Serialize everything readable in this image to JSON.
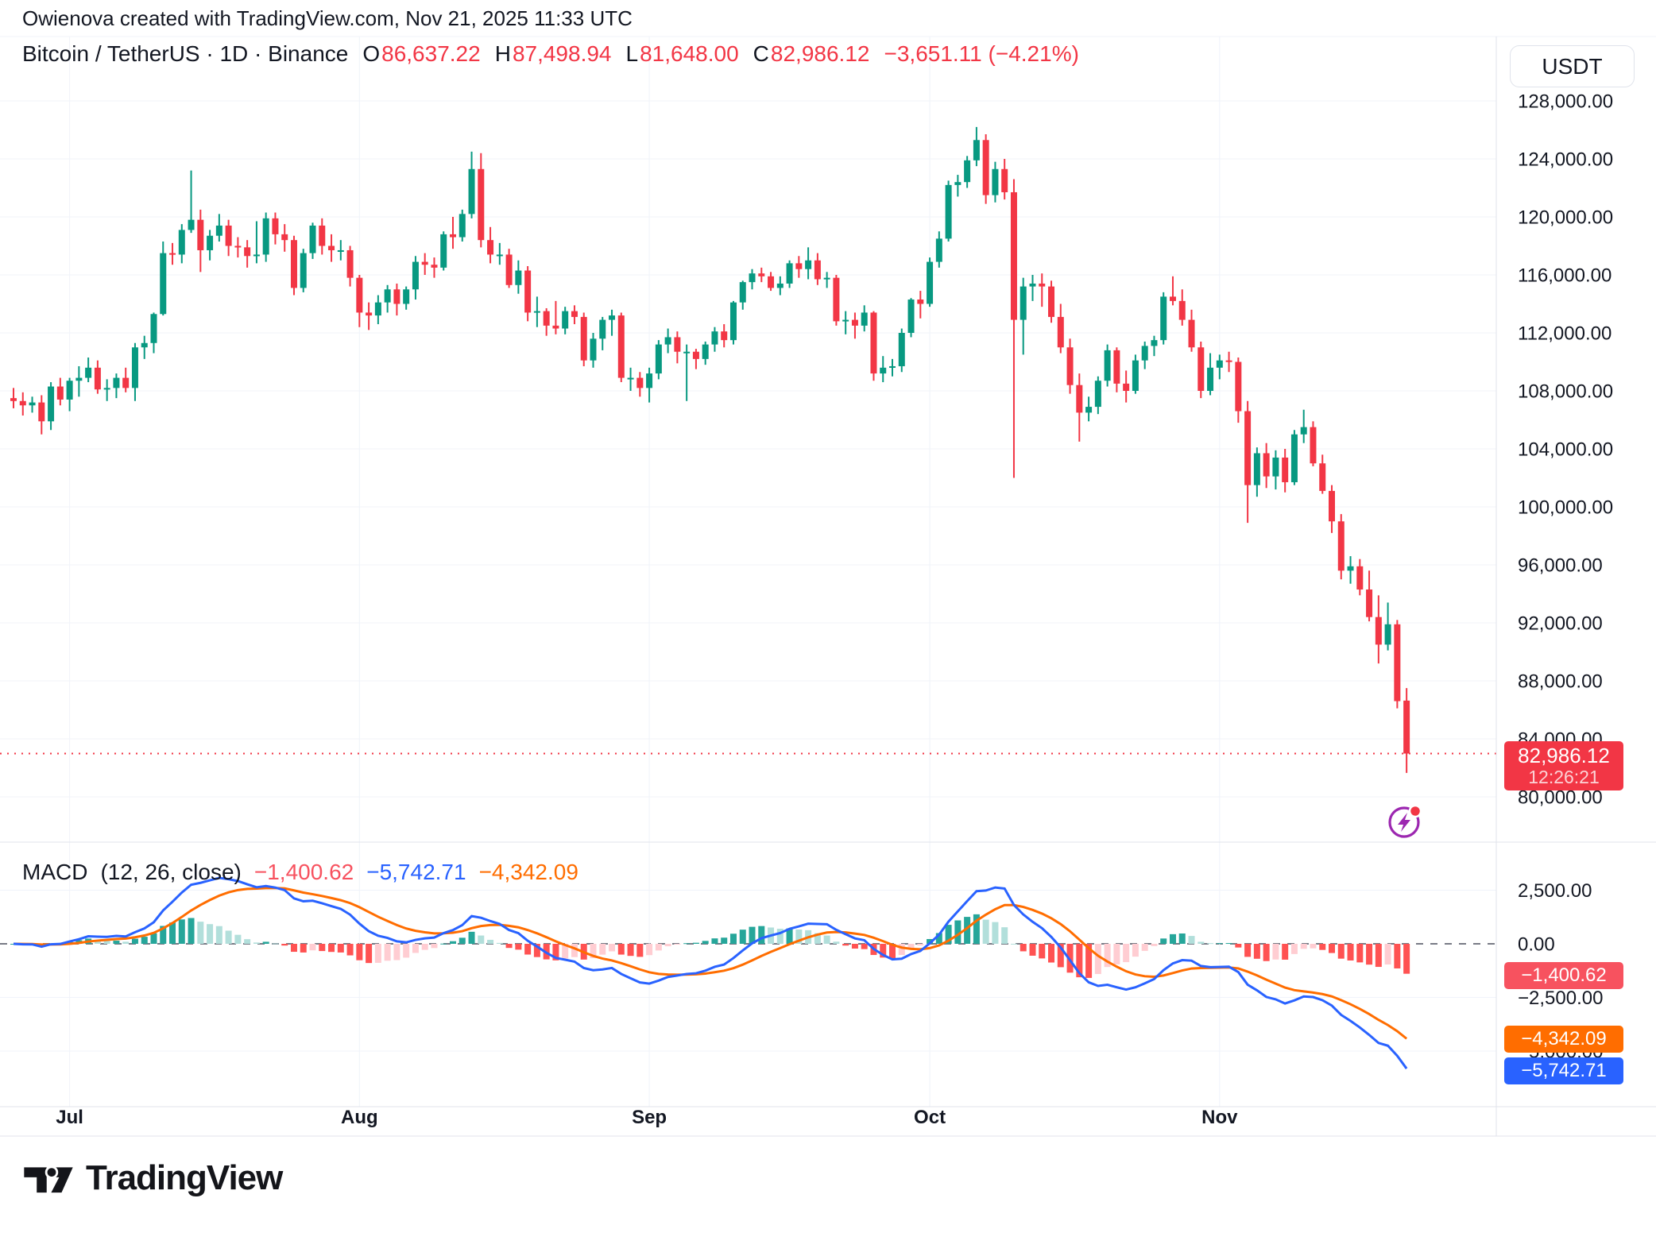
{
  "attribution": "Owienova created with TradingView.com, Nov 21, 2025 11:33 UTC",
  "header": {
    "instrument": "Bitcoin / TetherUS · 1D · Binance",
    "o_label": "O",
    "o": "86,637.22",
    "h_label": "H",
    "h": "87,498.94",
    "l_label": "L",
    "l": "81,648.00",
    "c_label": "C",
    "c": "82,986.12",
    "change": "−3,651.11 (−4.21%)"
  },
  "currency_button": "USDT",
  "price_axis": {
    "ticks": [
      {
        "value": 128000,
        "label": "128,000.00"
      },
      {
        "value": 124000,
        "label": "124,000.00"
      },
      {
        "value": 120000,
        "label": "120,000.00"
      },
      {
        "value": 116000,
        "label": "116,000.00"
      },
      {
        "value": 112000,
        "label": "112,000.00"
      },
      {
        "value": 108000,
        "label": "108,000.00"
      },
      {
        "value": 104000,
        "label": "104,000.00"
      },
      {
        "value": 100000,
        "label": "100,000.00"
      },
      {
        "value": 96000,
        "label": "96,000.00"
      },
      {
        "value": 92000,
        "label": "92,000.00"
      },
      {
        "value": 88000,
        "label": "88,000.00"
      },
      {
        "value": 84000,
        "label": "84,000.00"
      },
      {
        "value": 80000,
        "label": "80,000.00"
      }
    ],
    "badge": {
      "price": "82,986.12",
      "countdown": "12:26:21",
      "value": 82986.12
    }
  },
  "macd": {
    "title": "MACD",
    "params": "(12, 26, close)",
    "fast": 12,
    "slow": 26,
    "source": "close",
    "signal_period": 9,
    "hist_value": "−1,400.62",
    "macd_value": "−5,742.71",
    "signal_value": "−4,342.09",
    "axis_ticks": [
      {
        "value": 2500,
        "label": "2,500.00"
      },
      {
        "value": 0,
        "label": "0.00"
      },
      {
        "value": -2500,
        "label": "−2,500.00"
      },
      {
        "value": -5000,
        "label": "−5,000.00"
      }
    ]
  },
  "xaxis": {
    "months": [
      {
        "label": "Jul",
        "index": 6
      },
      {
        "label": "Aug",
        "index": 37
      },
      {
        "label": "Sep",
        "index": 68
      },
      {
        "label": "Oct",
        "index": 98
      },
      {
        "label": "Nov",
        "index": 129
      }
    ]
  },
  "footer": {
    "brand": "TradingView"
  },
  "colors": {
    "up": "#089981",
    "down": "#F23645",
    "macd_line": "#2962FF",
    "signal_line": "#FF6D00",
    "hist_grow_above": "#26A69A",
    "hist_fall_above": "#B2DFDB",
    "hist_fall_below": "#FF5252",
    "hist_grow_below": "#FFCDD2",
    "grid": "#F0F3FA",
    "border": "#E0E3EB",
    "text": "#131722",
    "zero_line": "#787B86",
    "dotted_price_line": "#F23645",
    "flash_icon_purple": "#9C27B0",
    "flash_icon_dot": "#F23645"
  },
  "chart_data": {
    "type": "candlestick",
    "title": "Bitcoin / TetherUS · 1D · Binance",
    "visible_price_range": [
      80000,
      128000
    ],
    "macd_visible_range": [
      -7500,
      4600
    ],
    "grid": true,
    "candles_ohlc": [
      [
        107500,
        108200,
        106800,
        107300
      ],
      [
        107300,
        107900,
        106300,
        107000
      ],
      [
        107000,
        107600,
        106500,
        107200
      ],
      [
        107200,
        107700,
        105000,
        105900
      ],
      [
        105900,
        108600,
        105300,
        108300
      ],
      [
        108300,
        108900,
        107000,
        107400
      ],
      [
        107400,
        108900,
        106600,
        108700
      ],
      [
        108700,
        109700,
        107600,
        108900
      ],
      [
        108900,
        110300,
        108600,
        109600
      ],
      [
        109600,
        110100,
        107800,
        108100
      ],
      [
        108100,
        108800,
        107300,
        108200
      ],
      [
        108200,
        109200,
        107500,
        108900
      ],
      [
        108900,
        109600,
        107900,
        108200
      ],
      [
        108200,
        111300,
        107300,
        111000
      ],
      [
        111000,
        111800,
        110200,
        111300
      ],
      [
        111300,
        113400,
        110600,
        113300
      ],
      [
        113300,
        118300,
        113200,
        117500
      ],
      [
        117500,
        118200,
        116700,
        117400
      ],
      [
        117400,
        119500,
        116800,
        119100
      ],
      [
        119100,
        123200,
        118900,
        119800
      ],
      [
        119800,
        120500,
        116200,
        117700
      ],
      [
        117700,
        119100,
        117000,
        118700
      ],
      [
        118700,
        120200,
        118300,
        119400
      ],
      [
        119400,
        119800,
        117300,
        118000
      ],
      [
        118000,
        118600,
        117200,
        117900
      ],
      [
        117900,
        118400,
        116500,
        117300
      ],
      [
        117300,
        119700,
        116800,
        117400
      ],
      [
        117400,
        120300,
        116900,
        119900
      ],
      [
        119900,
        120300,
        118100,
        118800
      ],
      [
        118800,
        119500,
        117600,
        118400
      ],
      [
        118400,
        118700,
        114600,
        115100
      ],
      [
        115100,
        117800,
        114800,
        117500
      ],
      [
        117500,
        119600,
        117100,
        119400
      ],
      [
        119400,
        119900,
        117400,
        118000
      ],
      [
        118000,
        118800,
        116900,
        117700
      ],
      [
        117700,
        118400,
        117000,
        117700
      ],
      [
        117700,
        118000,
        115200,
        115800
      ],
      [
        115800,
        116000,
        112400,
        113400
      ],
      [
        113400,
        114100,
        112200,
        113200
      ],
      [
        113200,
        114600,
        112600,
        114100
      ],
      [
        114100,
        115300,
        113400,
        115000
      ],
      [
        115000,
        115400,
        113200,
        114000
      ],
      [
        114000,
        115200,
        113600,
        115000
      ],
      [
        115000,
        117300,
        114300,
        116900
      ],
      [
        116900,
        117500,
        116000,
        116700
      ],
      [
        116700,
        117200,
        115800,
        116500
      ],
      [
        116500,
        119000,
        116300,
        118800
      ],
      [
        118800,
        120000,
        117800,
        118600
      ],
      [
        118600,
        120500,
        118300,
        120200
      ],
      [
        120200,
        124500,
        119900,
        123300
      ],
      [
        123300,
        124400,
        117900,
        118400
      ],
      [
        118400,
        119300,
        116800,
        117400
      ],
      [
        117400,
        118200,
        116700,
        117400
      ],
      [
        117400,
        117800,
        115100,
        115300
      ],
      [
        115300,
        117000,
        114700,
        116300
      ],
      [
        116300,
        116600,
        112800,
        113400
      ],
      [
        113400,
        114500,
        112400,
        113500
      ],
      [
        113500,
        113700,
        111800,
        112500
      ],
      [
        112500,
        114200,
        111900,
        112300
      ],
      [
        112300,
        113800,
        111900,
        113500
      ],
      [
        113500,
        113900,
        112600,
        113100
      ],
      [
        113100,
        113400,
        109700,
        110100
      ],
      [
        110100,
        112000,
        109600,
        111600
      ],
      [
        111600,
        113100,
        110800,
        112900
      ],
      [
        112900,
        113600,
        111800,
        113200
      ],
      [
        113200,
        113400,
        108600,
        108900
      ],
      [
        108900,
        109600,
        108000,
        108900
      ],
      [
        108900,
        109300,
        107600,
        108200
      ],
      [
        108200,
        109600,
        107200,
        109200
      ],
      [
        109200,
        111500,
        108800,
        111200
      ],
      [
        111200,
        112300,
        110600,
        111700
      ],
      [
        111700,
        112100,
        109900,
        110700
      ],
      [
        110700,
        111200,
        107300,
        110700
      ],
      [
        110700,
        110900,
        109500,
        110200
      ],
      [
        110200,
        111400,
        109800,
        111200
      ],
      [
        111200,
        112400,
        110700,
        112100
      ],
      [
        112100,
        112600,
        111000,
        111500
      ],
      [
        111500,
        114200,
        111200,
        114100
      ],
      [
        114100,
        115600,
        113600,
        115500
      ],
      [
        115500,
        116400,
        115000,
        116100
      ],
      [
        116100,
        116500,
        115500,
        115900
      ],
      [
        115900,
        116200,
        114900,
        115100
      ],
      [
        115100,
        115900,
        114600,
        115400
      ],
      [
        115400,
        117000,
        115100,
        116800
      ],
      [
        116800,
        117300,
        115800,
        116400
      ],
      [
        116400,
        117900,
        115700,
        117000
      ],
      [
        117000,
        117500,
        115300,
        115700
      ],
      [
        115700,
        116200,
        115100,
        115800
      ],
      [
        115800,
        116000,
        112500,
        112800
      ],
      [
        112800,
        113500,
        111900,
        112900
      ],
      [
        112900,
        113400,
        111600,
        112500
      ],
      [
        112500,
        113900,
        112100,
        113400
      ],
      [
        113400,
        113500,
        108700,
        109200
      ],
      [
        109200,
        110400,
        108600,
        109600
      ],
      [
        109600,
        110200,
        109000,
        109700
      ],
      [
        109700,
        112300,
        109300,
        112000
      ],
      [
        112000,
        114400,
        111700,
        114300
      ],
      [
        114300,
        114900,
        113000,
        114000
      ],
      [
        114000,
        117200,
        113800,
        116900
      ],
      [
        116900,
        119000,
        116500,
        118500
      ],
      [
        118500,
        122500,
        118300,
        122200
      ],
      [
        122200,
        122900,
        121400,
        122400
      ],
      [
        122400,
        124200,
        122000,
        123900
      ],
      [
        123900,
        126200,
        123500,
        125300
      ],
      [
        125300,
        125700,
        120900,
        121500
      ],
      [
        121500,
        123800,
        121000,
        123300
      ],
      [
        123300,
        124000,
        121200,
        121700
      ],
      [
        121700,
        122600,
        102000,
        112900
      ],
      [
        112900,
        115800,
        110500,
        115200
      ],
      [
        115200,
        116000,
        114200,
        115400
      ],
      [
        115400,
        116100,
        113800,
        115200
      ],
      [
        115200,
        115600,
        112700,
        113100
      ],
      [
        113100,
        114000,
        110600,
        111000
      ],
      [
        111000,
        111600,
        107800,
        108400
      ],
      [
        108400,
        109200,
        104500,
        106500
      ],
      [
        106500,
        107600,
        105900,
        106900
      ],
      [
        106900,
        109000,
        106400,
        108700
      ],
      [
        108700,
        111200,
        108300,
        110800
      ],
      [
        110800,
        111000,
        107900,
        108500
      ],
      [
        108500,
        109400,
        107200,
        108000
      ],
      [
        108000,
        110500,
        107800,
        110100
      ],
      [
        110100,
        111400,
        109500,
        111100
      ],
      [
        111100,
        111800,
        110400,
        111500
      ],
      [
        111500,
        114800,
        111200,
        114500
      ],
      [
        114500,
        115900,
        113900,
        114200
      ],
      [
        114200,
        115000,
        112500,
        112900
      ],
      [
        112900,
        113600,
        110700,
        111000
      ],
      [
        111000,
        111400,
        107500,
        108000
      ],
      [
        108000,
        110600,
        107700,
        109600
      ],
      [
        109600,
        110500,
        108800,
        110100
      ],
      [
        110100,
        110700,
        109300,
        110000
      ],
      [
        110000,
        110300,
        105800,
        106600
      ],
      [
        106600,
        107300,
        98900,
        101500
      ],
      [
        101500,
        104100,
        100700,
        103700
      ],
      [
        103700,
        104400,
        101300,
        102100
      ],
      [
        102100,
        103900,
        101200,
        103400
      ],
      [
        103400,
        104000,
        101000,
        101700
      ],
      [
        101700,
        105300,
        101500,
        105000
      ],
      [
        105000,
        106700,
        104400,
        105500
      ],
      [
        105500,
        105900,
        102800,
        103000
      ],
      [
        103000,
        103600,
        100900,
        101100
      ],
      [
        101100,
        101500,
        98200,
        99000
      ],
      [
        99000,
        99500,
        95000,
        95600
      ],
      [
        95600,
        96600,
        94700,
        95900
      ],
      [
        95900,
        96400,
        93900,
        94300
      ],
      [
        94300,
        95600,
        92100,
        92400
      ],
      [
        92400,
        93900,
        89200,
        90500
      ],
      [
        90500,
        93400,
        90100,
        91900
      ],
      [
        91900,
        92200,
        86100,
        86600
      ],
      [
        86637.22,
        87498.94,
        81648.0,
        82986.12
      ]
    ],
    "indicator": {
      "name": "MACD",
      "fast": 12,
      "slow": 26,
      "signal": 9,
      "source": "close",
      "last_histogram": -1400.62,
      "last_macd": -5742.71,
      "last_signal": -4342.09
    }
  }
}
